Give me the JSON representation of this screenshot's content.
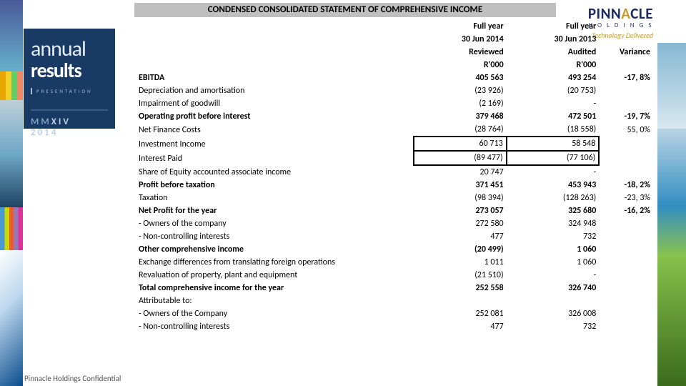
{
  "title_bar": "CONDENSED CONSOLIDATED STATEMENT OF COMPREHENSIVE INCOME",
  "logo": {
    "brand_pre": "PINN",
    "brand_arc": "A",
    "brand_post": "CLE",
    "holdings": "H O L D I N G S",
    "tagline": "Technology Delivered"
  },
  "badge": {
    "annual": "annual",
    "results": "results",
    "presentation": "PRESENTATION",
    "mm": "MM",
    "xiv": "XIV",
    "year": "2014"
  },
  "footer": "Pinnacle Holdings Confidential",
  "header": {
    "r1c1": "Full year",
    "r1c2": "Full year",
    "r2c1": "30 Jun 2014",
    "r2c2": "30 Jun 2013",
    "r3c1": "Reviewed",
    "r3c2": "Audited",
    "r3c3": "Variance",
    "r4c1": "R'000",
    "r4c2": "R'000"
  },
  "rows": [
    {
      "label": "EBITDA",
      "c1": "405 563",
      "c2": "493 254",
      "var": "-17, 8%",
      "bold": true
    },
    {
      "label": "Depreciation and amortisation",
      "c1": "(23 926)",
      "c2": "(20 753)",
      "var": ""
    },
    {
      "label": "Impairment of goodwill",
      "c1": "(2 169)",
      "c2": "-",
      "var": ""
    },
    {
      "label": "Operating profit before interest",
      "c1": "379 468",
      "c2": "472 501",
      "var": "-19, 7%",
      "bold": true
    },
    {
      "label": "Net Finance Costs",
      "c1": "(28 764)",
      "c2": "(18 558)",
      "var": "55, 0%"
    },
    {
      "label": "Investment Income",
      "c1": "60 713",
      "c2": "58 548",
      "var": "",
      "boxed": true
    },
    {
      "label": "Interest Paid",
      "c1": "(89 477)",
      "c2": "(77 106)",
      "var": "",
      "boxed": true
    },
    {
      "label": "Share of Equity accounted associate income",
      "c1": "20 747",
      "c2": "-",
      "var": ""
    },
    {
      "label": "Profit before taxation",
      "c1": "371 451",
      "c2": "453 943",
      "var": "-18, 2%",
      "bold": true
    },
    {
      "label": "Taxation",
      "c1": "(98 394)",
      "c2": "(128 263)",
      "var": "-23, 3%"
    },
    {
      "label": "Net Profit for the year",
      "c1": "273 057",
      "c2": "325 680",
      "var": "-16, 2%",
      "bold": true
    },
    {
      "label": " - Owners of the company",
      "c1": "272 580",
      "c2": "324 948",
      "var": ""
    },
    {
      "label": " - Non-controlling interests",
      "c1": "477",
      "c2": "732",
      "var": ""
    },
    {
      "label": "Other comprehensive income",
      "c1": "(20 499)",
      "c2": "1 060",
      "var": "",
      "bold": true
    },
    {
      "label": "Exchange differences from translating foreign operations",
      "c1": "1 011",
      "c2": "1 060",
      "var": ""
    },
    {
      "label": "Revaluation of property, plant and equipment",
      "c1": "(21 510)",
      "c2": "-",
      "var": ""
    },
    {
      "label": "Total comprehensive income for the year",
      "c1": "252 558",
      "c2": "326 740",
      "var": "",
      "bold": true
    },
    {
      "label": "Attributable to:",
      "c1": "",
      "c2": "",
      "var": ""
    },
    {
      "label": "- Owners of the Company",
      "c1": "252 081",
      "c2": "326 008",
      "var": ""
    },
    {
      "label": "- Non-controlling interests",
      "c1": "477",
      "c2": "732",
      "var": ""
    }
  ]
}
